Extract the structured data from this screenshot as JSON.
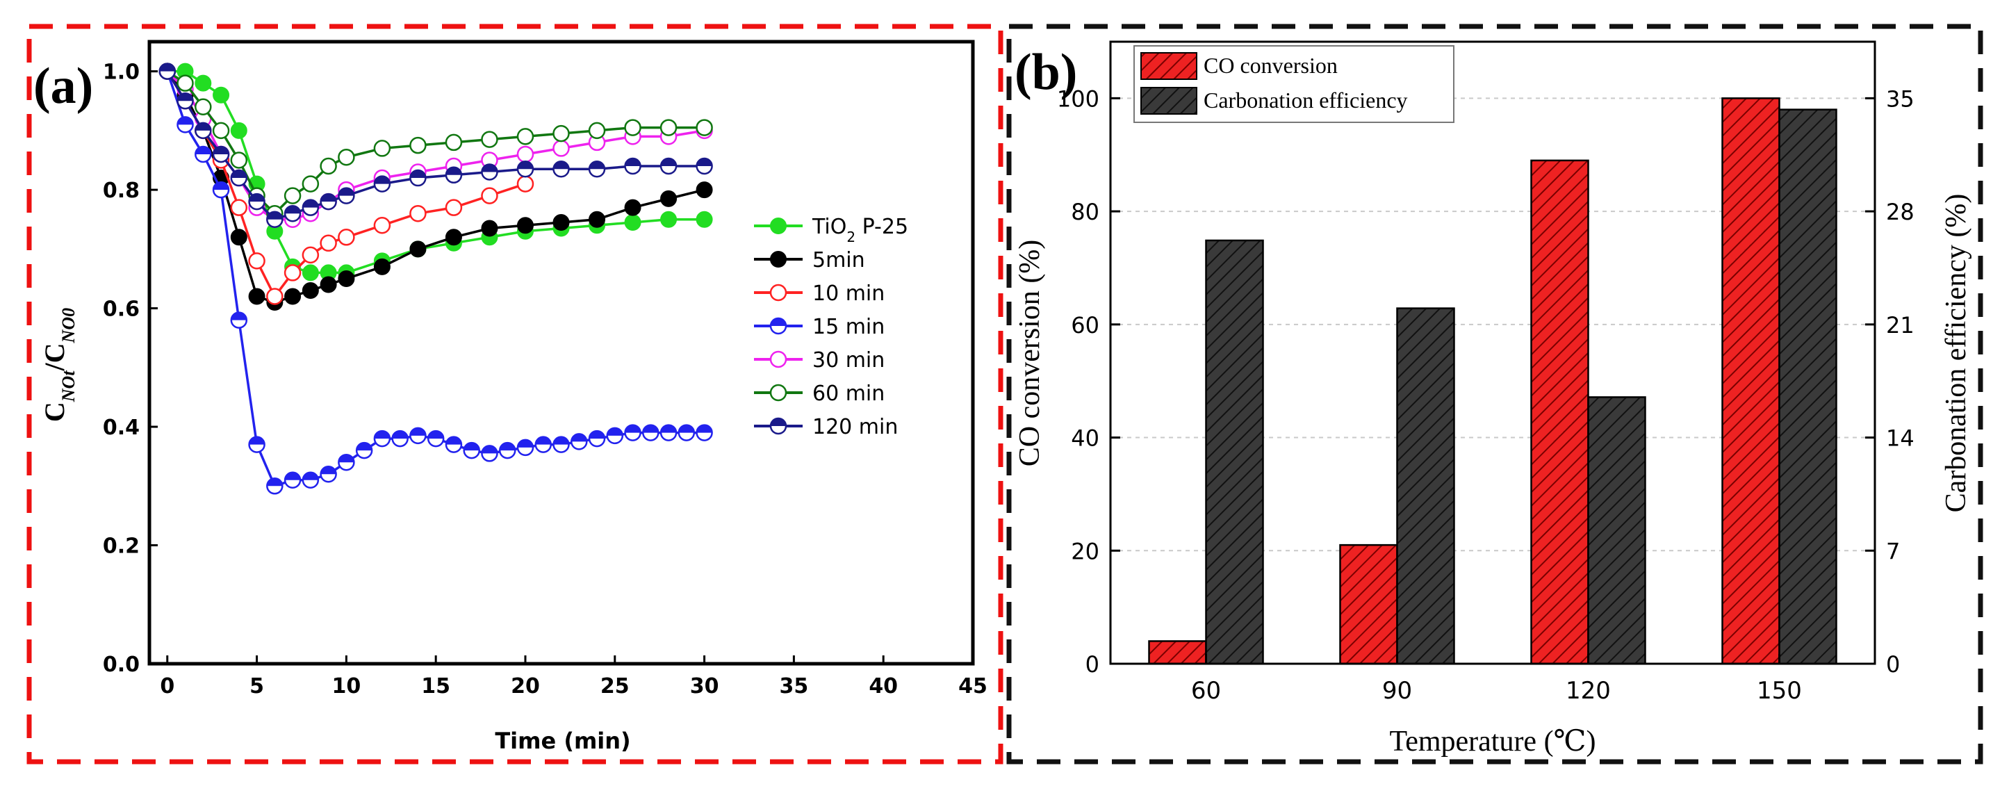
{
  "chart_data": [
    {
      "panel_label": "(a)",
      "type": "line",
      "xlabel": "Time (min)",
      "ylabel_main": "C",
      "ylabel_sub1": "NOt",
      "ylabel_sep": "/C",
      "ylabel_sub2": "NO0",
      "xlim": [
        -1,
        45
      ],
      "ylim": [
        0,
        1.05
      ],
      "xticks": [
        "0",
        "5",
        "10",
        "15",
        "20",
        "25",
        "30",
        "35",
        "40",
        "45"
      ],
      "yticks": [
        "0.0",
        "0.2",
        "0.4",
        "0.6",
        "0.8",
        "1.0"
      ],
      "legend_position": "right",
      "series": [
        {
          "name": "TiO2 P-25",
          "name_pre": "TiO",
          "name_sub": "2",
          "name_post": " P-25",
          "color": "#22dd22",
          "marker": "filled",
          "x": [
            0,
            1,
            2,
            3,
            4,
            5,
            6,
            7,
            8,
            9,
            10,
            12,
            14,
            16,
            18,
            20,
            22,
            24,
            26,
            28,
            30
          ],
          "y": [
            1.0,
            1.0,
            0.98,
            0.96,
            0.9,
            0.81,
            0.73,
            0.67,
            0.66,
            0.66,
            0.66,
            0.68,
            0.7,
            0.71,
            0.72,
            0.73,
            0.735,
            0.74,
            0.745,
            0.75,
            0.75
          ]
        },
        {
          "name": "5min",
          "color": "#000000",
          "marker": "filled",
          "x": [
            0,
            1,
            2,
            3,
            4,
            5,
            6,
            7,
            8,
            9,
            10,
            12,
            14,
            16,
            18,
            20,
            22,
            24,
            26,
            28,
            30
          ],
          "y": [
            1.0,
            0.96,
            0.9,
            0.82,
            0.72,
            0.62,
            0.61,
            0.62,
            0.63,
            0.64,
            0.65,
            0.67,
            0.7,
            0.72,
            0.735,
            0.74,
            0.745,
            0.75,
            0.77,
            0.785,
            0.8
          ]
        },
        {
          "name": "10 min",
          "color": "#ff2222",
          "marker": "open",
          "x": [
            0,
            1,
            2,
            3,
            4,
            5,
            6,
            7,
            8,
            9,
            10,
            12,
            14,
            16,
            18,
            20
          ],
          "y": [
            1.0,
            0.95,
            0.9,
            0.85,
            0.77,
            0.68,
            0.62,
            0.66,
            0.69,
            0.71,
            0.72,
            0.74,
            0.76,
            0.77,
            0.79,
            0.81
          ]
        },
        {
          "name": "15 min",
          "color": "#2222ee",
          "marker": "half",
          "x": [
            0,
            1,
            2,
            3,
            4,
            5,
            6,
            7,
            8,
            9,
            10,
            11,
            12,
            13,
            14,
            15,
            16,
            17,
            18,
            19,
            20,
            21,
            22,
            23,
            24,
            25,
            26,
            27,
            28,
            29,
            30
          ],
          "y": [
            1.0,
            0.91,
            0.86,
            0.8,
            0.58,
            0.37,
            0.3,
            0.31,
            0.31,
            0.32,
            0.34,
            0.36,
            0.38,
            0.38,
            0.385,
            0.38,
            0.37,
            0.36,
            0.355,
            0.36,
            0.365,
            0.37,
            0.37,
            0.375,
            0.38,
            0.385,
            0.39,
            0.39,
            0.39,
            0.39,
            0.39
          ]
        },
        {
          "name": "30 min",
          "color": "#ee22ee",
          "marker": "open",
          "x": [
            0,
            1,
            2,
            3,
            4,
            5,
            6,
            7,
            8,
            9,
            10,
            12,
            14,
            16,
            18,
            20,
            22,
            24,
            26,
            28,
            30
          ],
          "y": [
            1.0,
            0.97,
            0.92,
            0.86,
            0.82,
            0.77,
            0.75,
            0.75,
            0.76,
            0.78,
            0.8,
            0.82,
            0.83,
            0.84,
            0.85,
            0.86,
            0.87,
            0.88,
            0.89,
            0.89,
            0.9
          ]
        },
        {
          "name": "60 min",
          "color": "#117711",
          "marker": "open",
          "x": [
            0,
            1,
            2,
            3,
            4,
            5,
            6,
            7,
            8,
            9,
            10,
            12,
            14,
            16,
            18,
            20,
            22,
            24,
            26,
            28,
            30
          ],
          "y": [
            1.0,
            0.98,
            0.94,
            0.9,
            0.85,
            0.79,
            0.76,
            0.79,
            0.81,
            0.84,
            0.855,
            0.87,
            0.875,
            0.88,
            0.885,
            0.89,
            0.895,
            0.9,
            0.905,
            0.905,
            0.905
          ]
        },
        {
          "name": "120 min",
          "color": "#1a1a8a",
          "marker": "half",
          "x": [
            0,
            1,
            2,
            3,
            4,
            5,
            6,
            7,
            8,
            9,
            10,
            12,
            14,
            16,
            18,
            20,
            22,
            24,
            26,
            28,
            30
          ],
          "y": [
            1.0,
            0.95,
            0.9,
            0.86,
            0.82,
            0.78,
            0.75,
            0.76,
            0.77,
            0.78,
            0.79,
            0.81,
            0.82,
            0.825,
            0.83,
            0.835,
            0.835,
            0.835,
            0.84,
            0.84,
            0.84
          ]
        }
      ]
    },
    {
      "panel_label": "(b)",
      "type": "bar",
      "xlabel": "Temperature (℃)",
      "ylabel": "CO conversion (%)",
      "ylabel_right": "Carbonation efficiency (%)",
      "categories": [
        "60",
        "90",
        "120",
        "150"
      ],
      "ylim": [
        0,
        110
      ],
      "ylim_right": [
        0,
        38.5
      ],
      "yticks": [
        "0",
        "20",
        "40",
        "60",
        "80",
        "100"
      ],
      "yticks_right": [
        "0",
        "7",
        "14",
        "21",
        "28",
        "35"
      ],
      "legend_position": "top-left",
      "series": [
        {
          "name": "CO conversion",
          "axis": "left",
          "color": "#ee2222",
          "values": [
            4,
            21,
            89,
            100
          ]
        },
        {
          "name": "Carbonation efficiency",
          "axis": "right",
          "color": "#333333",
          "values": [
            26.2,
            22,
            16.5,
            34.3
          ]
        }
      ]
    }
  ]
}
